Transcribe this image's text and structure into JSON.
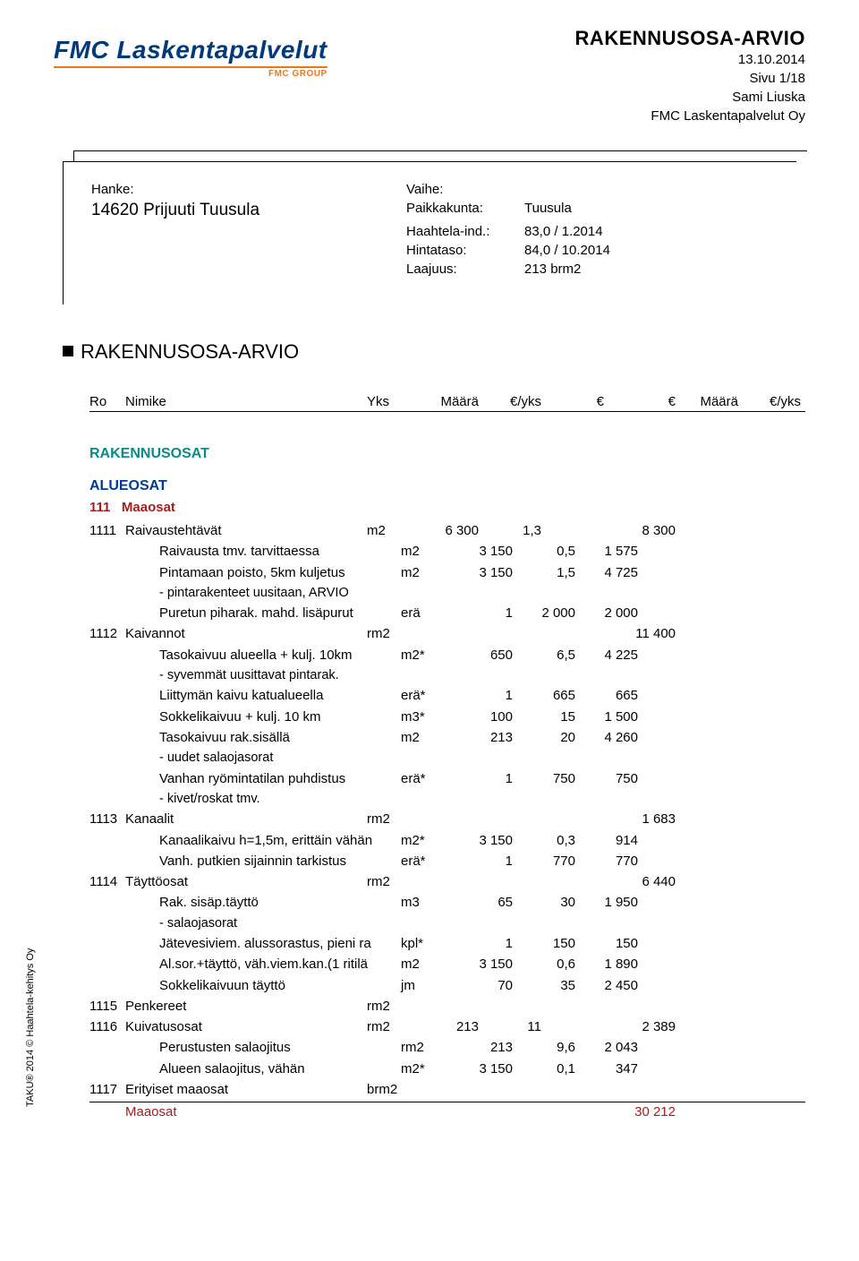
{
  "logo": {
    "main": "FMC Laskentapalvelut",
    "sub": "FMC GROUP"
  },
  "header": {
    "title": "RAKENNUSOSA-ARVIO",
    "date": "13.10.2014",
    "page": "Sivu 1/18",
    "author": "Sami Liuska",
    "company": "FMC Laskentapalvelut Oy"
  },
  "project": {
    "hanke_label": "Hanke:",
    "hanke_value": "14620  Prijuuti Tuusula",
    "vaihe_label": "Vaihe:",
    "paikkakunta_label": "Paikkakunta:",
    "paikkakunta_value": "Tuusula",
    "haahtela_label": "Haahtela-ind.:",
    "haahtela_value": "83,0 / 1.2014",
    "hintataso_label": "Hintataso:",
    "hintataso_value": "84,0 / 10.2014",
    "laajuus_label": "Laajuus:",
    "laajuus_value": "213 brm2"
  },
  "section_title": "RAKENNUSOSA-ARVIO",
  "columns": {
    "ro": "Ro",
    "nimike": "Nimike",
    "yks": "Yks",
    "maara": "Määrä",
    "eyks": "€/yks",
    "eur": "€",
    "eur2": "€",
    "maara2": "Määrä",
    "eyks2": "€/yks"
  },
  "group1": "RAKENNUSOSAT",
  "group2": "ALUEOSAT",
  "group3": {
    "code": "111",
    "name": "Maaosat"
  },
  "rows": [
    {
      "t": "main",
      "ro": "1111",
      "nim": "Raivaustehtävät",
      "yks": "m2",
      "m": "6 300",
      "ey": "1,3",
      "e": "",
      "e2": "8 300"
    },
    {
      "t": "sub",
      "nim": "Raivausta tmv. tarvittaessa",
      "yks": "m2",
      "m": "3 150",
      "ey": "0,5",
      "e": "1 575"
    },
    {
      "t": "sub",
      "nim": "Pintamaan poisto, 5km kuljetus",
      "yks": "m2",
      "m": "3 150",
      "ey": "1,5",
      "e": "4 725"
    },
    {
      "t": "note",
      "nim": "- pintarakenteet uusitaan, ARVIO"
    },
    {
      "t": "sub",
      "nim": "Puretun piharak. mahd. lisäpurut",
      "yks": "erä",
      "m": "1",
      "ey": "2 000",
      "e": "2 000"
    },
    {
      "t": "main",
      "ro": "1112",
      "nim": "Kaivannot",
      "yks": "rm2",
      "m": "",
      "ey": "",
      "e": "",
      "e2": "11 400"
    },
    {
      "t": "sub",
      "nim": "Tasokaivuu alueella + kulj. 10km",
      "yks": "m2*",
      "m": "650",
      "ey": "6,5",
      "e": "4 225"
    },
    {
      "t": "note",
      "nim": "- syvemmät uusittavat pintarak."
    },
    {
      "t": "sub",
      "nim": "Liittymän kaivu katualueella",
      "yks": "erä*",
      "m": "1",
      "ey": "665",
      "e": "665"
    },
    {
      "t": "sub",
      "nim": "Sokkelikaivuu + kulj. 10 km",
      "yks": "m3*",
      "m": "100",
      "ey": "15",
      "e": "1 500"
    },
    {
      "t": "sub",
      "nim": "Tasokaivuu rak.sisällä",
      "yks": "m2",
      "m": "213",
      "ey": "20",
      "e": "4 260"
    },
    {
      "t": "note",
      "nim": "- uudet salaojasorat"
    },
    {
      "t": "sub",
      "nim": "Vanhan ryömintatilan puhdistus",
      "yks": "erä*",
      "m": "1",
      "ey": "750",
      "e": "750"
    },
    {
      "t": "note",
      "nim": "- kivet/roskat tmv."
    },
    {
      "t": "main",
      "ro": "1113",
      "nim": "Kanaalit",
      "yks": "rm2",
      "m": "",
      "ey": "",
      "e": "",
      "e2": "1 683"
    },
    {
      "t": "sub",
      "nim": "Kanaalikaivu h=1,5m, erittäin vähän",
      "yks": "m2*",
      "m": "3 150",
      "ey": "0,3",
      "e": "914"
    },
    {
      "t": "sub",
      "nim": "Vanh. putkien sijainnin tarkistus",
      "yks": "erä*",
      "m": "1",
      "ey": "770",
      "e": "770"
    },
    {
      "t": "main",
      "ro": "1114",
      "nim": "Täyttöosat",
      "yks": "rm2",
      "m": "",
      "ey": "",
      "e": "",
      "e2": "6 440"
    },
    {
      "t": "sub",
      "nim": "Rak. sisäp.täyttö",
      "yks": "m3",
      "m": "65",
      "ey": "30",
      "e": "1 950"
    },
    {
      "t": "note",
      "nim": "- salaojasorat"
    },
    {
      "t": "sub",
      "nim": "Jätevesiviem. alussorastus, pieni ra",
      "yks": "kpl*",
      "m": "1",
      "ey": "150",
      "e": "150"
    },
    {
      "t": "sub",
      "nim": "Al.sor.+täyttö, väh.viem.kan.(1 ritilä",
      "yks": "m2",
      "m": "3 150",
      "ey": "0,6",
      "e": "1 890"
    },
    {
      "t": "sub",
      "nim": "Sokkelikaivuun täyttö",
      "yks": "jm",
      "m": "70",
      "ey": "35",
      "e": "2 450"
    },
    {
      "t": "main",
      "ro": "1115",
      "nim": "Penkereet",
      "yks": "rm2"
    },
    {
      "t": "main",
      "ro": "1116",
      "nim": "Kuivatusosat",
      "yks": "rm2",
      "m": "213",
      "ey": "11",
      "e": "",
      "e2": "2 389"
    },
    {
      "t": "sub",
      "nim": "Perustusten salaojitus",
      "yks": "rm2",
      "m": "213",
      "ey": "9,6",
      "e": "2 043"
    },
    {
      "t": "sub",
      "nim": "Alueen salaojitus, vähän",
      "yks": "m2*",
      "m": "3 150",
      "ey": "0,1",
      "e": "347"
    },
    {
      "t": "main",
      "ro": "1117",
      "nim": "Erityiset maaosat",
      "yks": "brm2"
    }
  ],
  "total": {
    "label": "Maaosat",
    "value": "30 212"
  },
  "side_text": "TAKU® 2014 © Haahtela-kehitys Oy"
}
